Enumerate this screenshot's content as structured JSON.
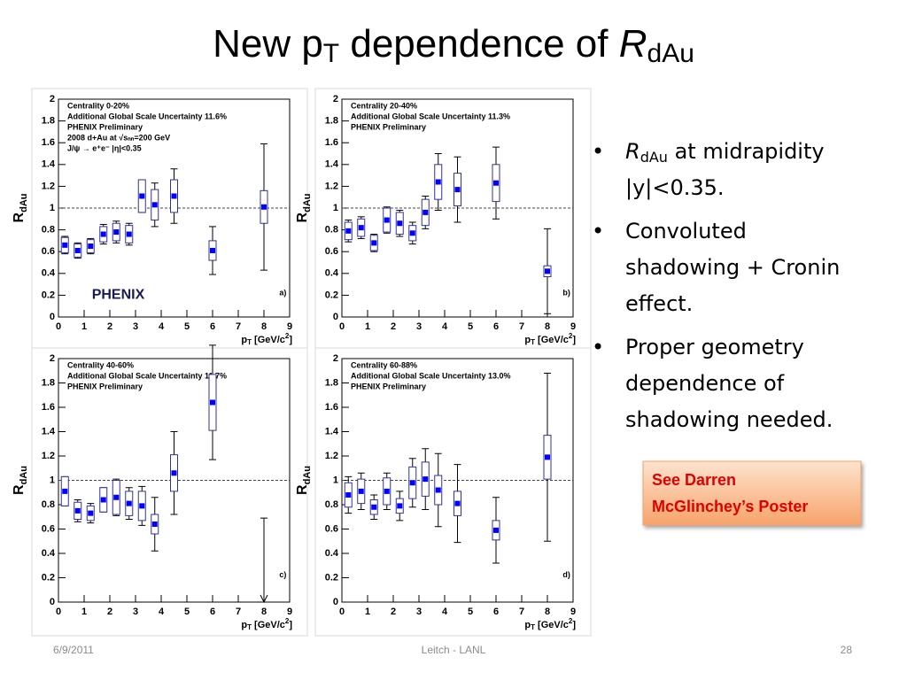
{
  "title": {
    "main": "New p",
    "sub": "T",
    "middle": " dependence of ",
    "italic": "R",
    "sub2": "dAu"
  },
  "bullets": [
    {
      "italic": "R",
      "sub": "dAu",
      "lines": [
        " at midrapidity",
        "|y|<0.35."
      ]
    },
    {
      "lines": [
        "Convoluted",
        "shadowing + Cronin",
        "effect."
      ]
    },
    {
      "lines": [
        " Proper geometry",
        "dependence of",
        "shadowing needed."
      ]
    }
  ],
  "callout": [
    "See Darren",
    "McGlinchey’s Poster"
  ],
  "footer": {
    "date": "6/9/2011",
    "center": "Leitch - LANL",
    "page": "28"
  },
  "chart_data": [
    {
      "type": "scatter",
      "panel_label": "a)",
      "logo": "PHENIX",
      "legend_lines": [
        "Centrality 0-20%",
        "Additional Global Scale Uncertainty 11.6%",
        "PHENIX Preliminary",
        "2008 d+Au at √sₙₙ=200 GeV",
        "J/ψ → e⁺e⁻ |η|<0.35"
      ],
      "ylabel": {
        "main": "R",
        "sub": "dAu"
      },
      "xlabel": {
        "main": "p",
        "sub": "T",
        "rest": " [GeV/c",
        "sup": "2",
        "end": "]"
      },
      "x": [
        0.25,
        0.75,
        1.25,
        1.75,
        2.25,
        2.75,
        3.25,
        3.75,
        4.5,
        6,
        8
      ],
      "values": [
        0.66,
        0.61,
        0.65,
        0.76,
        0.78,
        0.76,
        1.11,
        1.03,
        1.11,
        0.61,
        1.01
      ],
      "stat_errors": [
        0.08,
        0.07,
        0.07,
        0.09,
        0.1,
        0.1,
        0.15,
        0.2,
        0.25,
        0.22,
        0.58
      ],
      "sys_errors": [
        0.07,
        0.06,
        0.06,
        0.07,
        0.08,
        0.08,
        0.15,
        0.14,
        0.15,
        0.09,
        0.15
      ],
      "color": "#0000ff",
      "reference_line": 1,
      "xlim": [
        0,
        9
      ],
      "xticks": [
        0,
        1,
        2,
        3,
        4,
        5,
        6,
        7,
        8,
        9
      ],
      "ylim": [
        0,
        2
      ],
      "yticks": [
        0,
        0.2,
        0.4,
        0.6,
        0.8,
        1,
        1.2,
        1.4,
        1.6,
        1.8,
        2
      ]
    },
    {
      "type": "scatter",
      "panel_label": "b)",
      "legend_lines": [
        "Centrality 20-40%",
        "Additional Global Scale Uncertainty 11.3%",
        "PHENIX Preliminary"
      ],
      "ylabel": {
        "main": "R",
        "sub": "dAu"
      },
      "xlabel": {
        "main": "p",
        "sub": "T",
        "rest": " [GeV/c",
        "sup": "2",
        "end": "]"
      },
      "x": [
        0.25,
        0.75,
        1.25,
        1.75,
        2.25,
        2.75,
        3.25,
        3.75,
        4.5,
        6,
        8
      ],
      "values": [
        0.79,
        0.82,
        0.68,
        0.89,
        0.86,
        0.77,
        0.96,
        1.24,
        1.17,
        1.23,
        0.42
      ],
      "stat_errors": [
        0.1,
        0.1,
        0.08,
        0.12,
        0.12,
        0.1,
        0.15,
        0.26,
        0.3,
        0.33,
        0.39
      ],
      "sys_errors": [
        0.08,
        0.08,
        0.07,
        0.11,
        0.1,
        0.07,
        0.12,
        0.16,
        0.15,
        0.17,
        0.05
      ],
      "color": "#0000ff",
      "reference_line": 1,
      "xlim": [
        0,
        9
      ],
      "xticks": [
        0,
        1,
        2,
        3,
        4,
        5,
        6,
        7,
        8,
        9
      ],
      "ylim": [
        0,
        2
      ],
      "yticks": [
        0,
        0.2,
        0.4,
        0.6,
        0.8,
        1,
        1.2,
        1.4,
        1.6,
        1.8,
        2
      ]
    },
    {
      "type": "scatter",
      "panel_label": "c)",
      "legend_lines": [
        "Centrality 40-60%",
        "Additional Global Scale Uncertainty 11.7%",
        "PHENIX Preliminary"
      ],
      "ylabel": {
        "main": "R",
        "sub": "dAu"
      },
      "xlabel": {
        "main": "p",
        "sub": "T",
        "rest": " [GeV/c",
        "sup": "2",
        "end": "]"
      },
      "x": [
        0.25,
        0.75,
        1.25,
        1.75,
        2.25,
        2.75,
        3.25,
        3.75,
        4.5,
        6
      ],
      "values": [
        0.91,
        0.75,
        0.73,
        0.84,
        0.86,
        0.81,
        0.79,
        0.64,
        1.06,
        1.64
      ],
      "stat_errors": [
        0.12,
        0.09,
        0.08,
        0.1,
        0.15,
        0.13,
        0.16,
        0.22,
        0.34,
        0.47
      ],
      "sys_errors": [
        0.12,
        0.07,
        0.06,
        0.1,
        0.14,
        0.1,
        0.12,
        0.08,
        0.15,
        0.23
      ],
      "upper_limit": {
        "x": 8,
        "value": 0.69
      },
      "color": "#0000ff",
      "reference_line": 1,
      "xlim": [
        0,
        9
      ],
      "xticks": [
        0,
        1,
        2,
        3,
        4,
        5,
        6,
        7,
        8,
        9
      ],
      "ylim": [
        0,
        2
      ],
      "yticks": [
        0,
        0.2,
        0.4,
        0.6,
        0.8,
        1,
        1.2,
        1.4,
        1.6,
        1.8,
        2
      ]
    },
    {
      "type": "scatter",
      "panel_label": "d)",
      "legend_lines": [
        "Centrality 60-88%",
        "Additional Global Scale Uncertainty 13.0%",
        "PHENIX Preliminary"
      ],
      "ylabel": {
        "main": "R",
        "sub": "dAu"
      },
      "xlabel": {
        "main": "p",
        "sub": "T",
        "rest": " [GeV/c",
        "sup": "2",
        "end": "]"
      },
      "x": [
        0.25,
        0.75,
        1.25,
        1.75,
        2.25,
        2.75,
        3.25,
        3.75,
        4.5,
        6,
        8
      ],
      "values": [
        0.88,
        0.91,
        0.78,
        0.91,
        0.79,
        0.98,
        1.01,
        0.92,
        0.81,
        0.59,
        1.19
      ],
      "stat_errors": [
        0.15,
        0.15,
        0.1,
        0.15,
        0.12,
        0.2,
        0.25,
        0.3,
        0.32,
        0.27,
        0.69
      ],
      "sys_errors": [
        0.1,
        0.1,
        0.06,
        0.11,
        0.06,
        0.13,
        0.14,
        0.12,
        0.1,
        0.08,
        0.18
      ],
      "color": "#0000ff",
      "reference_line": 1,
      "xlim": [
        0,
        9
      ],
      "xticks": [
        0,
        1,
        2,
        3,
        4,
        5,
        6,
        7,
        8,
        9
      ],
      "ylim": [
        0,
        2
      ],
      "yticks": [
        0,
        0.2,
        0.4,
        0.6,
        0.8,
        1,
        1.2,
        1.4,
        1.6,
        1.8,
        2
      ]
    }
  ]
}
